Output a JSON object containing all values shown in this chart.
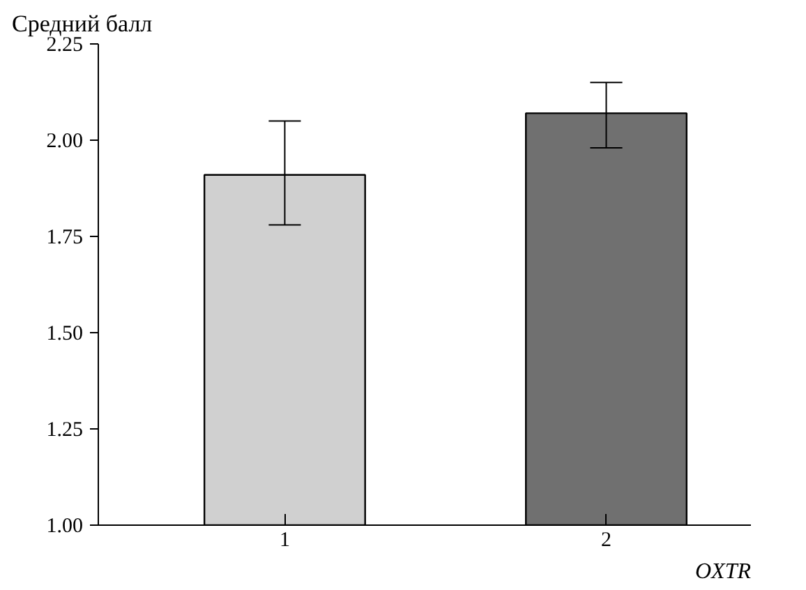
{
  "chart_data": {
    "type": "bar",
    "ylabel": "Средний балл",
    "xlabel": "OXTR",
    "categories": [
      "1",
      "2"
    ],
    "values": [
      1.91,
      2.07
    ],
    "errors": [
      [
        1.78,
        2.05
      ],
      [
        1.98,
        2.15
      ]
    ],
    "colors": [
      "#d0d0d0",
      "#707070"
    ],
    "ylim": [
      1.0,
      2.25
    ],
    "yticks": [
      {
        "value": 1.0,
        "label": "1.00"
      },
      {
        "value": 1.25,
        "label": "1.25"
      },
      {
        "value": 1.5,
        "label": "1.50"
      },
      {
        "value": 1.75,
        "label": "1.75"
      },
      {
        "value": 2.0,
        "label": "2.00"
      },
      {
        "value": 2.25,
        "label": "2.25"
      }
    ],
    "grid": false
  }
}
